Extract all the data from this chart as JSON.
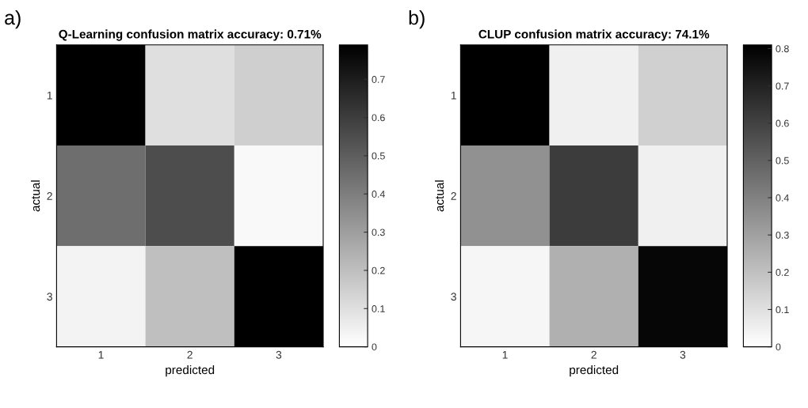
{
  "chart_data": [
    {
      "type": "heatmap",
      "title": "Q-Learning confusion matrix accuracy: 0.71%",
      "xlabel": "predicted",
      "ylabel": "actual",
      "annotations": [
        "a)"
      ],
      "categories": [
        "1",
        "2",
        "3"
      ],
      "y_categories": [
        "1",
        "2",
        "3"
      ],
      "cells": [
        [
          0.79,
          0.1,
          0.15
        ],
        [
          0.45,
          0.55,
          0.02
        ],
        [
          0.04,
          0.2,
          0.79
        ]
      ],
      "clim": [
        0,
        0.79
      ],
      "cticks": [
        0,
        0.1,
        0.2,
        0.3,
        0.4,
        0.5,
        0.6,
        0.7
      ]
    },
    {
      "type": "heatmap",
      "title": "CLUP confusion matrix accuracy: 74.1%",
      "xlabel": "predicted",
      "ylabel": "actual",
      "annotations": [
        "b)"
      ],
      "categories": [
        "1",
        "2",
        "3"
      ],
      "y_categories": [
        "1",
        "2",
        "3"
      ],
      "cells": [
        [
          0.81,
          0.05,
          0.15
        ],
        [
          0.35,
          0.62,
          0.05
        ],
        [
          0.03,
          0.25,
          0.79
        ]
      ],
      "clim": [
        0,
        0.81
      ],
      "cticks": [
        0,
        0.1,
        0.2,
        0.3,
        0.4,
        0.5,
        0.6,
        0.7,
        0.8
      ]
    }
  ]
}
